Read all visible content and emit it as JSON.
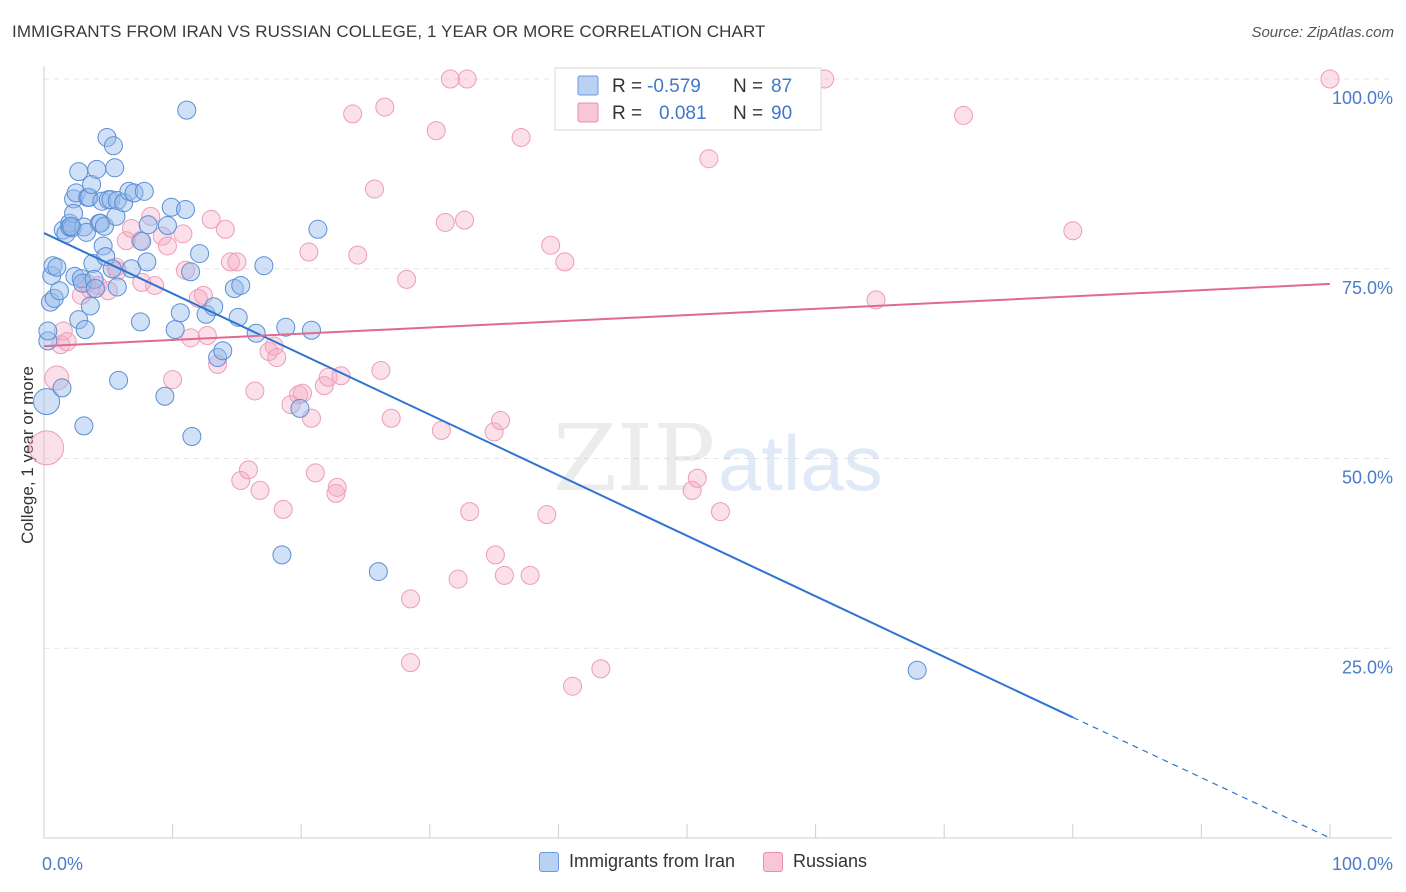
{
  "title": "IMMIGRANTS FROM IRAN VS RUSSIAN COLLEGE, 1 YEAR OR MORE CORRELATION CHART",
  "source": "Source: ZipAtlas.com",
  "watermark": {
    "zip": "ZIP",
    "atlas": "atlas"
  },
  "colors": {
    "blue": "#5b8fd6",
    "blue_line": "#2f74d0",
    "pink": "#eda0b8",
    "pink_line": "#e06a92",
    "tick_text": "#4a7cc8"
  },
  "legend_stats": {
    "r_label": "R =",
    "n_label": "N =",
    "iran": {
      "r": "-0.579",
      "n": "87"
    },
    "russians": {
      "r": "0.081",
      "n": "90"
    }
  },
  "legend_bottom": {
    "iran": "Immigrants from Iran",
    "russians": "Russians"
  },
  "chart_data": {
    "type": "scatter",
    "title": "IMMIGRANTS FROM IRAN VS RUSSIAN COLLEGE, 1 YEAR OR MORE CORRELATION CHART",
    "xlabel": "",
    "ylabel": "College, 1 year or more",
    "xlim": [
      0,
      100
    ],
    "ylim": [
      0,
      100
    ],
    "x_tick_labels": [
      "0.0%",
      "100.0%"
    ],
    "y_ticks": [
      25,
      50,
      75,
      100
    ],
    "y_tick_labels": [
      "25.0%",
      "50.0%",
      "75.0%",
      "100.0%"
    ],
    "grid": true,
    "legend_position": "top-center",
    "series": [
      {
        "name": "Immigrants from Iran",
        "r": -0.579,
        "n": 87,
        "trend": {
          "x0": 0,
          "y0": 79.7,
          "x1": 80,
          "y1": 15.9,
          "dash_to_x": 100,
          "dash_to_y": 0
        },
        "points": [
          [
            0.2,
            57.5
          ],
          [
            0.3,
            65.5
          ],
          [
            0.3,
            66.8
          ],
          [
            0.5,
            70.6
          ],
          [
            0.6,
            74.1
          ],
          [
            0.7,
            75.4
          ],
          [
            0.8,
            71.1
          ],
          [
            1.0,
            75.2
          ],
          [
            1.2,
            72.1
          ],
          [
            1.4,
            59.3
          ],
          [
            1.5,
            80.1
          ],
          [
            1.7,
            79.6
          ],
          [
            2.0,
            80.5
          ],
          [
            2.0,
            81.0
          ],
          [
            2.2,
            80.4
          ],
          [
            2.3,
            84.2
          ],
          [
            2.3,
            82.3
          ],
          [
            2.4,
            74.0
          ],
          [
            2.5,
            85.0
          ],
          [
            2.7,
            68.3
          ],
          [
            2.7,
            87.8
          ],
          [
            2.9,
            73.7
          ],
          [
            3.0,
            73.1
          ],
          [
            3.1,
            54.3
          ],
          [
            3.1,
            80.5
          ],
          [
            3.2,
            67.0
          ],
          [
            3.4,
            84.4
          ],
          [
            3.5,
            84.4
          ],
          [
            3.6,
            70.1
          ],
          [
            3.7,
            86.1
          ],
          [
            3.8,
            75.7
          ],
          [
            3.9,
            73.6
          ],
          [
            4.1,
            88.1
          ],
          [
            4.3,
            81.0
          ],
          [
            4.4,
            81.0
          ],
          [
            4.5,
            83.9
          ],
          [
            4.6,
            78.0
          ],
          [
            4.7,
            80.6
          ],
          [
            4.8,
            76.6
          ],
          [
            4.9,
            92.3
          ],
          [
            5.0,
            84.1
          ],
          [
            5.2,
            84.1
          ],
          [
            5.3,
            75.0
          ],
          [
            5.4,
            91.2
          ],
          [
            5.5,
            88.3
          ],
          [
            5.6,
            81.9
          ],
          [
            5.7,
            84.0
          ],
          [
            5.7,
            72.6
          ],
          [
            5.8,
            60.3
          ],
          [
            6.2,
            83.7
          ],
          [
            6.6,
            85.2
          ],
          [
            6.8,
            75.0
          ],
          [
            7.0,
            85.0
          ],
          [
            7.5,
            68.0
          ],
          [
            7.6,
            78.6
          ],
          [
            7.8,
            85.2
          ],
          [
            8.0,
            75.9
          ],
          [
            8.1,
            80.8
          ],
          [
            9.4,
            58.2
          ],
          [
            9.6,
            80.7
          ],
          [
            9.9,
            83.1
          ],
          [
            10.2,
            67.0
          ],
          [
            10.6,
            69.2
          ],
          [
            11.0,
            82.8
          ],
          [
            11.1,
            95.9
          ],
          [
            11.4,
            74.6
          ],
          [
            11.5,
            52.9
          ],
          [
            12.1,
            77.0
          ],
          [
            12.6,
            69.0
          ],
          [
            13.2,
            70.0
          ],
          [
            13.5,
            63.3
          ],
          [
            13.9,
            64.2
          ],
          [
            14.8,
            72.4
          ],
          [
            15.1,
            68.6
          ],
          [
            15.3,
            72.8
          ],
          [
            16.5,
            66.5
          ],
          [
            17.1,
            75.4
          ],
          [
            18.5,
            37.3
          ],
          [
            18.8,
            67.3
          ],
          [
            19.9,
            56.6
          ],
          [
            20.8,
            66.9
          ],
          [
            21.3,
            80.2
          ],
          [
            26.0,
            35.1
          ],
          [
            67.9,
            22.1
          ],
          [
            3.3,
            79.8
          ],
          [
            2.1,
            80.6
          ],
          [
            4.0,
            72.4
          ]
        ]
      },
      {
        "name": "Russians",
        "r": 0.081,
        "n": 90,
        "trend": {
          "x0": 0,
          "y0": 64.8,
          "x1": 100,
          "y1": 73.0
        },
        "points": [
          [
            0.2,
            51.4
          ],
          [
            1.0,
            60.6
          ],
          [
            1.3,
            65.0
          ],
          [
            1.5,
            66.8
          ],
          [
            1.8,
            65.4
          ],
          [
            2.9,
            71.5
          ],
          [
            3.3,
            73.1
          ],
          [
            3.6,
            72.3
          ],
          [
            4.2,
            72.8
          ],
          [
            5.0,
            72.1
          ],
          [
            5.6,
            75.2
          ],
          [
            5.7,
            74.7
          ],
          [
            6.4,
            78.7
          ],
          [
            6.8,
            80.3
          ],
          [
            7.5,
            78.7
          ],
          [
            7.6,
            73.2
          ],
          [
            8.3,
            81.9
          ],
          [
            8.6,
            72.8
          ],
          [
            9.2,
            79.3
          ],
          [
            9.6,
            78.0
          ],
          [
            10.0,
            60.4
          ],
          [
            10.8,
            79.6
          ],
          [
            11.0,
            74.8
          ],
          [
            11.4,
            65.9
          ],
          [
            12.0,
            71.1
          ],
          [
            12.4,
            71.5
          ],
          [
            12.7,
            66.2
          ],
          [
            13.0,
            81.5
          ],
          [
            13.5,
            62.4
          ],
          [
            14.1,
            80.2
          ],
          [
            14.5,
            75.9
          ],
          [
            15.0,
            75.9
          ],
          [
            15.3,
            47.1
          ],
          [
            15.9,
            48.5
          ],
          [
            16.4,
            58.9
          ],
          [
            16.8,
            45.8
          ],
          [
            17.5,
            64.1
          ],
          [
            17.9,
            64.8
          ],
          [
            18.1,
            63.3
          ],
          [
            18.6,
            43.3
          ],
          [
            19.2,
            57.1
          ],
          [
            19.8,
            58.4
          ],
          [
            20.1,
            58.6
          ],
          [
            20.6,
            77.2
          ],
          [
            20.8,
            55.3
          ],
          [
            21.1,
            48.1
          ],
          [
            21.8,
            59.6
          ],
          [
            22.1,
            60.7
          ],
          [
            22.7,
            45.4
          ],
          [
            23.1,
            60.9
          ],
          [
            22.8,
            46.2
          ],
          [
            24.0,
            95.4
          ],
          [
            24.4,
            76.8
          ],
          [
            25.7,
            85.5
          ],
          [
            26.2,
            61.6
          ],
          [
            26.5,
            96.3
          ],
          [
            27.0,
            55.3
          ],
          [
            28.2,
            73.6
          ],
          [
            28.5,
            31.5
          ],
          [
            28.5,
            23.1
          ],
          [
            30.5,
            93.2
          ],
          [
            30.9,
            53.7
          ],
          [
            31.2,
            81.1
          ],
          [
            31.6,
            100.0
          ],
          [
            32.2,
            34.1
          ],
          [
            32.7,
            81.4
          ],
          [
            32.9,
            100.0
          ],
          [
            33.1,
            43.0
          ],
          [
            35.0,
            53.5
          ],
          [
            35.1,
            37.3
          ],
          [
            35.8,
            34.6
          ],
          [
            37.1,
            92.3
          ],
          [
            37.8,
            34.6
          ],
          [
            39.1,
            42.6
          ],
          [
            39.4,
            78.1
          ],
          [
            40.5,
            75.9
          ],
          [
            41.1,
            20.0
          ],
          [
            43.3,
            22.3
          ],
          [
            46.5,
            100.0
          ],
          [
            50.4,
            45.8
          ],
          [
            50.8,
            47.4
          ],
          [
            51.7,
            89.5
          ],
          [
            52.6,
            43.0
          ],
          [
            58.6,
            100.0
          ],
          [
            60.7,
            100.0
          ],
          [
            64.7,
            70.9
          ],
          [
            71.5,
            95.2
          ],
          [
            80.0,
            80.0
          ],
          [
            100.0,
            100.0
          ],
          [
            35.5,
            55.0
          ]
        ]
      }
    ]
  }
}
